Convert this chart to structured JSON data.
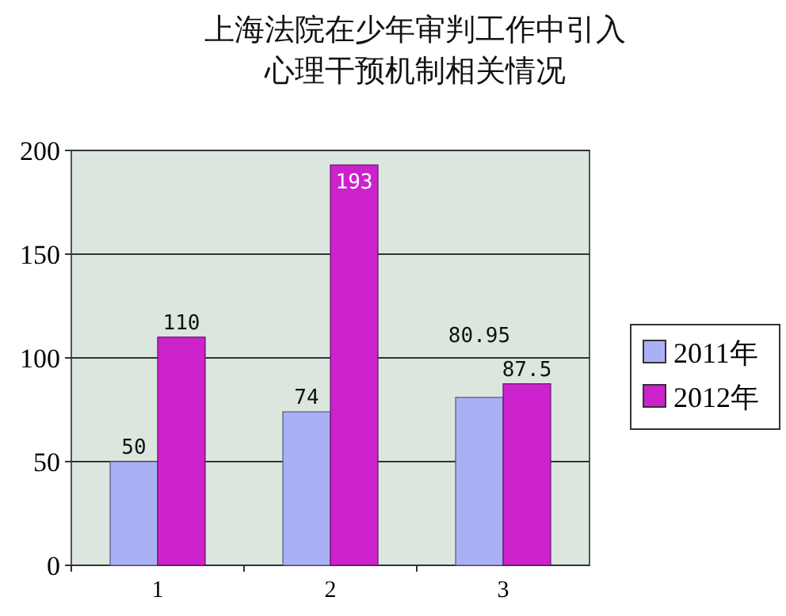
{
  "chart_data": {
    "type": "bar",
    "title": "上海法院在少年审判工作中引入心理干预机制相关情况",
    "categories": [
      "1",
      "2",
      "3"
    ],
    "series": [
      {
        "name": "2011年",
        "color": "#aab0f4",
        "values": [
          50,
          74,
          80.95
        ]
      },
      {
        "name": "2012年",
        "color": "#cc22cc",
        "values": [
          110,
          193,
          87.5
        ]
      }
    ],
    "ylim": [
      0,
      200
    ],
    "yticks": [
      0,
      50,
      100,
      150,
      200
    ],
    "grid": "y",
    "legend": "right",
    "data_labels": true
  }
}
